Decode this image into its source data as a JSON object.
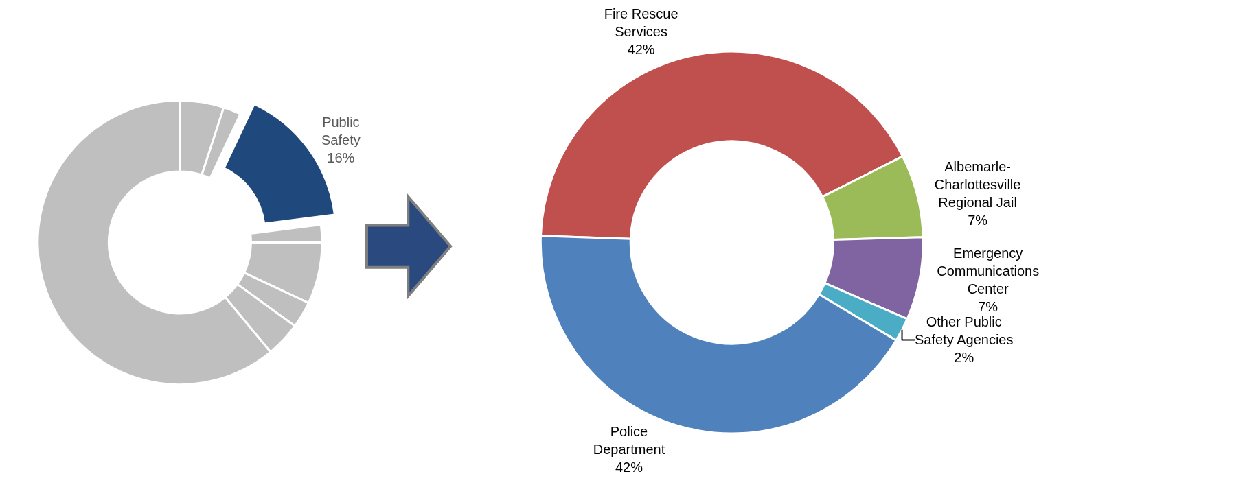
{
  "chart_data": [
    {
      "type": "donut",
      "categories": [
        null,
        null,
        "Public Safety",
        null,
        null,
        null,
        null,
        null
      ],
      "values": [
        5,
        2,
        16,
        2,
        7,
        3,
        4,
        61
      ],
      "colors": [
        "#bfbfbf",
        "#bfbfbf",
        "#1f497d",
        "#bfbfbf",
        "#bfbfbf",
        "#bfbfbf",
        "#bfbfbf",
        "#bfbfbf"
      ],
      "value_labels": [
        null,
        null,
        "16%",
        null,
        null,
        null,
        null,
        null
      ]
    },
    {
      "type": "donut",
      "categories": [
        "Fire Rescue Services",
        "Albemarle-Charlottesville Regional Jail",
        "Emergency Communications Center",
        "Other Public Safety Agencies",
        "Police Department"
      ],
      "values": [
        42,
        7,
        7,
        2,
        42
      ],
      "colors": [
        "#c0504d",
        "#9bbb59",
        "#8064a2",
        "#4bacc6",
        "#4f81bd"
      ],
      "value_labels": [
        "42%",
        "7%",
        "7%",
        "2%",
        "42%"
      ]
    }
  ]
}
